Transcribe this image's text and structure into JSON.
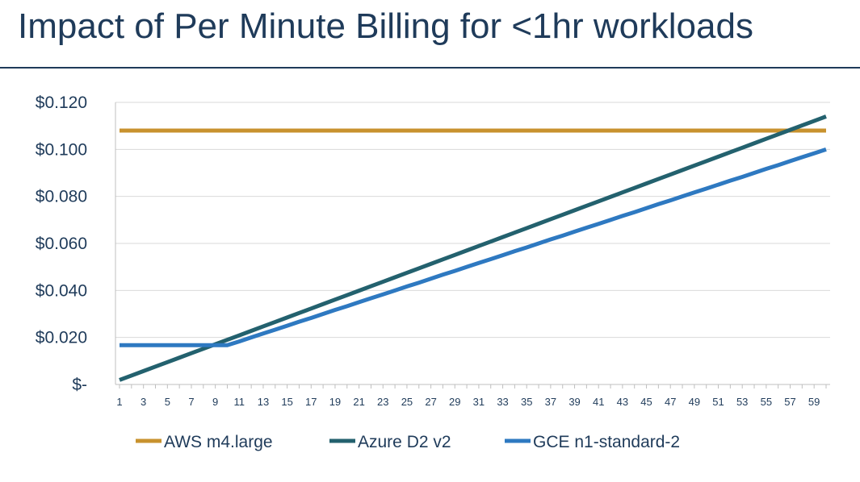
{
  "page": {
    "title": "Impact of Per Minute Billing for <1hr workloads"
  },
  "chart_data": {
    "type": "line",
    "title": "",
    "xlabel": "",
    "ylabel": "",
    "x": [
      1,
      2,
      3,
      4,
      5,
      6,
      7,
      8,
      9,
      10,
      11,
      12,
      13,
      14,
      15,
      16,
      17,
      18,
      19,
      20,
      21,
      22,
      23,
      24,
      25,
      26,
      27,
      28,
      29,
      30,
      31,
      32,
      33,
      34,
      35,
      36,
      37,
      38,
      39,
      40,
      41,
      42,
      43,
      44,
      45,
      46,
      47,
      48,
      49,
      50,
      51,
      52,
      53,
      54,
      55,
      56,
      57,
      58,
      59,
      60
    ],
    "x_tick_labels": [
      "1",
      "3",
      "5",
      "7",
      "9",
      "11",
      "13",
      "15",
      "17",
      "19",
      "21",
      "23",
      "25",
      "27",
      "29",
      "31",
      "33",
      "35",
      "37",
      "39",
      "41",
      "43",
      "45",
      "47",
      "49",
      "51",
      "53",
      "55",
      "57",
      "59"
    ],
    "ylim": [
      0,
      0.12
    ],
    "y_ticks": [
      0,
      0.02,
      0.04,
      0.06,
      0.08,
      0.1,
      0.12
    ],
    "y_tick_labels": [
      "$-",
      "$0.020",
      "$0.040",
      "$0.060",
      "$0.080",
      "$0.100",
      "$0.120"
    ],
    "grid": "horizontal",
    "legend_position": "bottom",
    "series": [
      {
        "name": "AWS m4.large",
        "color": "#c8922e",
        "values": [
          0.108,
          0.108,
          0.108,
          0.108,
          0.108,
          0.108,
          0.108,
          0.108,
          0.108,
          0.108,
          0.108,
          0.108,
          0.108,
          0.108,
          0.108,
          0.108,
          0.108,
          0.108,
          0.108,
          0.108,
          0.108,
          0.108,
          0.108,
          0.108,
          0.108,
          0.108,
          0.108,
          0.108,
          0.108,
          0.108,
          0.108,
          0.108,
          0.108,
          0.108,
          0.108,
          0.108,
          0.108,
          0.108,
          0.108,
          0.108,
          0.108,
          0.108,
          0.108,
          0.108,
          0.108,
          0.108,
          0.108,
          0.108,
          0.108,
          0.108,
          0.108,
          0.108,
          0.108,
          0.108,
          0.108,
          0.108,
          0.108,
          0.108,
          0.108,
          0.108
        ]
      },
      {
        "name": "Azure D2 v2",
        "color": "#23616e",
        "values": [
          0.0019,
          0.0038,
          0.0057,
          0.0076,
          0.0095,
          0.0114,
          0.0133,
          0.0152,
          0.0171,
          0.019,
          0.0209,
          0.0228,
          0.0247,
          0.0266,
          0.0285,
          0.0304,
          0.0323,
          0.0342,
          0.0361,
          0.038,
          0.0399,
          0.0418,
          0.0437,
          0.0456,
          0.0475,
          0.0494,
          0.0513,
          0.0532,
          0.0551,
          0.057,
          0.0589,
          0.0608,
          0.0627,
          0.0646,
          0.0665,
          0.0684,
          0.0703,
          0.0722,
          0.0741,
          0.076,
          0.0779,
          0.0798,
          0.0817,
          0.0836,
          0.0855,
          0.0874,
          0.0893,
          0.0912,
          0.0931,
          0.095,
          0.0969,
          0.0988,
          0.1007,
          0.1026,
          0.1045,
          0.1064,
          0.1083,
          0.1102,
          0.1121,
          0.114
        ]
      },
      {
        "name": "GCE n1-standard-2",
        "color": "#2e79c1",
        "values": [
          0.0167,
          0.0167,
          0.0167,
          0.0167,
          0.0167,
          0.0167,
          0.0167,
          0.0167,
          0.0167,
          0.0167,
          0.0183,
          0.02,
          0.0217,
          0.0233,
          0.025,
          0.0267,
          0.0283,
          0.03,
          0.0317,
          0.0333,
          0.035,
          0.0367,
          0.0383,
          0.04,
          0.0417,
          0.0433,
          0.045,
          0.0467,
          0.0483,
          0.05,
          0.0517,
          0.0533,
          0.055,
          0.0567,
          0.0583,
          0.06,
          0.0617,
          0.0633,
          0.065,
          0.0667,
          0.0683,
          0.07,
          0.0717,
          0.0733,
          0.075,
          0.0767,
          0.0783,
          0.08,
          0.0817,
          0.0833,
          0.085,
          0.0867,
          0.0883,
          0.09,
          0.0917,
          0.0933,
          0.095,
          0.0967,
          0.0983,
          0.1
        ]
      }
    ]
  }
}
